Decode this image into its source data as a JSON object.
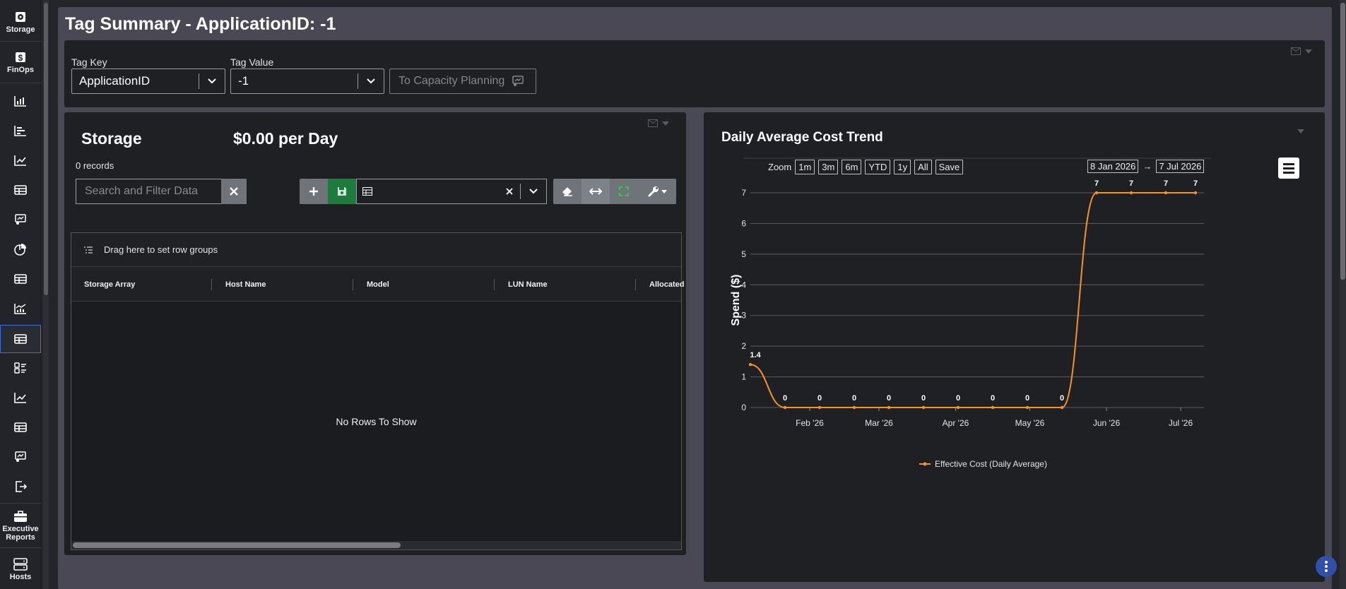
{
  "sidebar": {
    "storage_label": "Storage",
    "finops_label": "FinOps",
    "executive_reports_label": "Executive Reports",
    "hosts_label": "Hosts",
    "icons": [
      "bar-chart-icon",
      "hbar-chart-icon",
      "line-chart-icon",
      "table-icon",
      "capacity-icon",
      "pie-chart-icon",
      "table-icon",
      "trend-chart-icon",
      "table-icon",
      "list-view-icon",
      "line-chart-icon",
      "table-icon",
      "capacity-icon",
      "logout-icon"
    ]
  },
  "page": {
    "title": "Tag Summary - ApplicationID: -1"
  },
  "filters": {
    "tag_key_label": "Tag Key",
    "tag_key_value": "ApplicationID",
    "tag_value_label": "Tag Value",
    "tag_value_value": "-1",
    "capacity_button": "To Capacity Planning"
  },
  "storage": {
    "title": "Storage",
    "cost": "$0.00 per Day",
    "records": "0 records",
    "search_placeholder": "Search and Filter Data",
    "row_group_hint": "Drag here to set row groups",
    "columns": [
      "Storage Array",
      "Host Name",
      "Model",
      "LUN Name",
      "Allocated"
    ],
    "empty_text": "No Rows To Show"
  },
  "chart": {
    "zoom_label": "Zoom",
    "zoom_buttons": [
      "1m",
      "3m",
      "6m",
      "YTD",
      "1y",
      "All",
      "Save"
    ],
    "date_from": "8 Jan 2026",
    "date_arrow": "→",
    "date_to": "7 Jul 2026",
    "accent_color": "#f7931e"
  },
  "chart_data": {
    "type": "line",
    "title": "Daily Average Cost Trend",
    "xlabel": "",
    "ylabel": "Spend ($)",
    "ylim": [
      0,
      7
    ],
    "yticks": [
      0,
      1,
      2,
      3,
      4,
      5,
      6,
      7
    ],
    "xticks": [
      "Feb '26",
      "Mar '26",
      "Apr '26",
      "May '26",
      "Jun '26",
      "Jul '26"
    ],
    "xtick_dates": [
      "2026-02-01",
      "2026-03-01",
      "2026-04-01",
      "2026-05-01",
      "2026-06-01",
      "2026-07-01"
    ],
    "xlim": [
      "2026-01-08",
      "2026-07-07"
    ],
    "grid": true,
    "legend_position": "bottom-center",
    "series": [
      {
        "name": "Effective Cost (Daily Average)",
        "color": "#f7931e",
        "x": [
          "2026-01-08",
          "2026-01-22",
          "2026-02-05",
          "2026-02-19",
          "2026-03-05",
          "2026-03-19",
          "2026-04-02",
          "2026-04-16",
          "2026-04-30",
          "2026-05-14",
          "2026-05-28",
          "2026-06-11",
          "2026-06-25",
          "2026-07-07"
        ],
        "values": [
          1.4,
          0,
          0,
          0,
          0,
          0,
          0,
          0,
          0,
          0,
          7,
          7,
          7,
          7
        ],
        "labels": [
          "1.4",
          "0",
          "0",
          "0",
          "0",
          "0",
          "0",
          "0",
          "0",
          "0",
          "7",
          "7",
          "7",
          "7"
        ]
      }
    ]
  }
}
